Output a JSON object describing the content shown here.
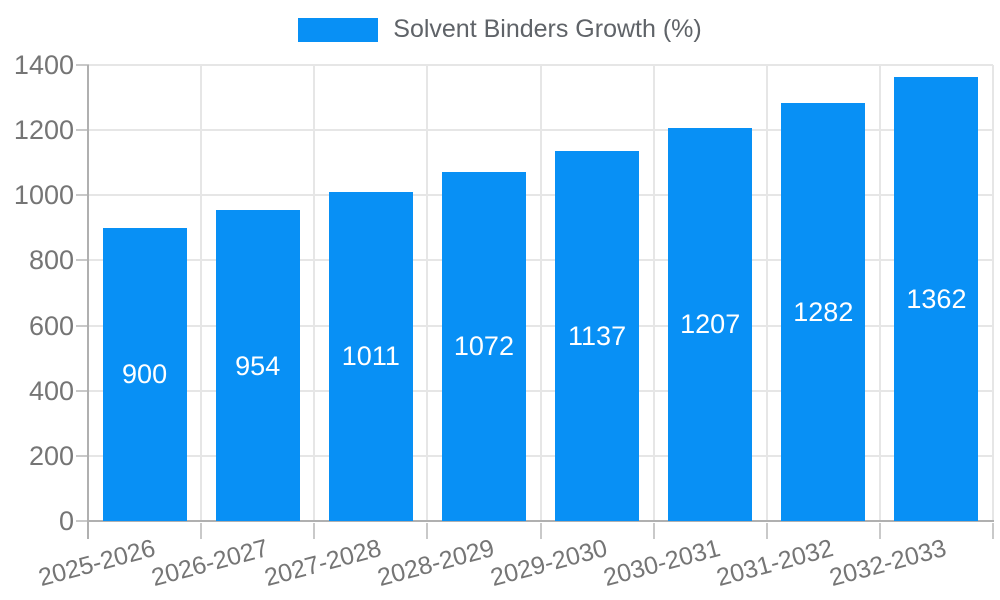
{
  "legend": {
    "label": "Solvent Binders Growth (%)"
  },
  "chart_data": {
    "type": "bar",
    "title": "Solvent Binders Growth (%)",
    "categories": [
      "2025-2026",
      "2026-2027",
      "2027-2028",
      "2028-2029",
      "2029-2030",
      "2030-2031",
      "2031-2032",
      "2032-2033"
    ],
    "series": [
      {
        "name": "Solvent Binders Growth (%)",
        "color": "#0890F5",
        "values": [
          900,
          954,
          1011,
          1072,
          1137,
          1207,
          1282,
          1362
        ]
      }
    ],
    "xlabel": "",
    "ylabel": "",
    "ylim": [
      0,
      1400
    ],
    "yticks": [
      0,
      200,
      400,
      600,
      800,
      1000,
      1200,
      1400
    ],
    "grid": true,
    "legend_position": "top-center",
    "value_label_position": "inside-middle",
    "xtick_rotation_deg": -15
  },
  "colors": {
    "bar": "#0890F5",
    "background": "#FFFFFF",
    "gridline": "#E6E6E6",
    "axis_line": "#B0B0B0",
    "tick": "#C9C9C9",
    "axis_text": "#757575",
    "legend_text": "#5F6368",
    "value_text": "#FFFFFF"
  }
}
